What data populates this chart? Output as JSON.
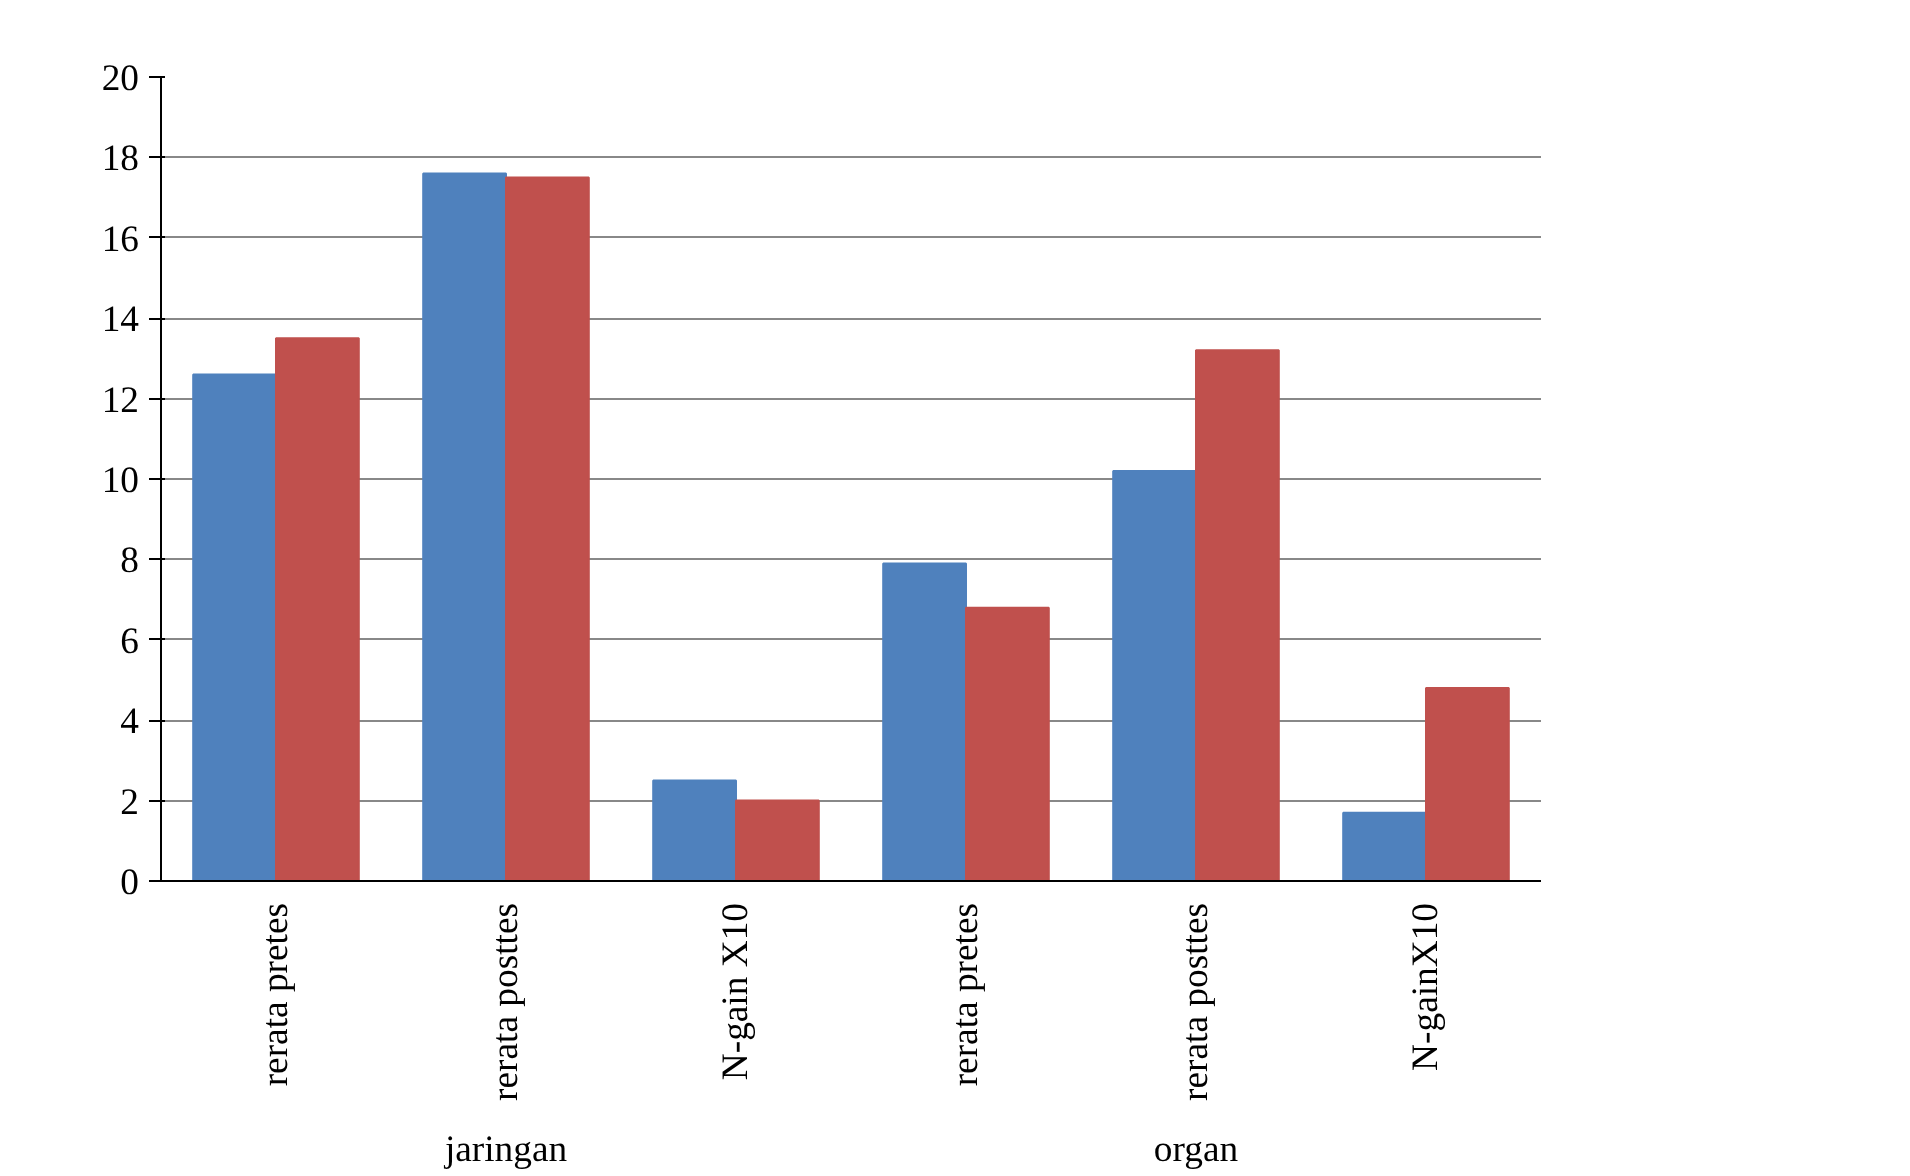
{
  "chart_data": {
    "type": "bar",
    "categories": [
      "rerata pretes",
      "rerata posttes",
      "N-gain X10",
      "rerata pretes",
      "rerata posttes",
      "N-gainX10"
    ],
    "series": [
      {
        "color": "#4f81bd",
        "values": [
          12.6,
          17.6,
          2.5,
          7.9,
          10.2,
          1.7
        ]
      },
      {
        "color": "#c0504d",
        "values": [
          13.5,
          17.5,
          2.0,
          6.8,
          13.2,
          4.8
        ]
      }
    ],
    "annotations": [
      "jaringan",
      "organ"
    ],
    "ylim": [
      0,
      20
    ],
    "yticks": [
      0,
      2,
      4,
      6,
      8,
      10,
      12,
      14,
      16,
      18,
      20
    ],
    "grid": "y"
  }
}
